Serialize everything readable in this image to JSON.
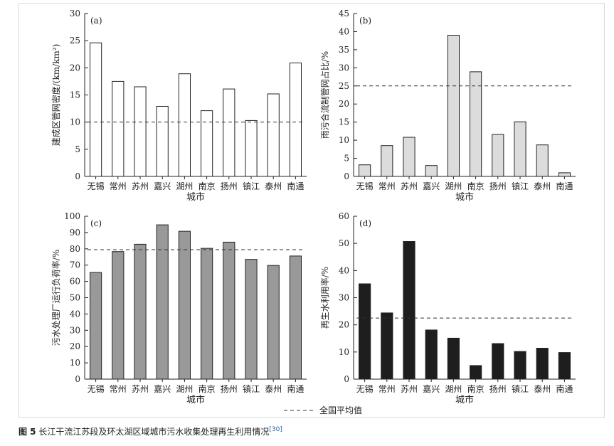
{
  "legend": {
    "label": "全国平均值"
  },
  "caption": {
    "figure": "图 5",
    "text": "长江干流江苏段及环太湖区域城市污水收集处理再生利用情况",
    "ref": "[30]"
  },
  "chart_data": [
    {
      "type": "bar",
      "panel": "(a)",
      "categories": [
        "无锡",
        "常州",
        "苏州",
        "嘉兴",
        "湖州",
        "南京",
        "扬州",
        "镇江",
        "泰州",
        "南通"
      ],
      "values": [
        24.6,
        17.5,
        16.5,
        12.9,
        18.9,
        12.1,
        16.1,
        10.3,
        15.2,
        20.9
      ],
      "national_average": 10,
      "xlabel": "城市",
      "ylabel": "建成区管网密度/(km/km²)",
      "ylim": [
        0,
        30
      ],
      "yticks": [
        0,
        5,
        10,
        15,
        20,
        25,
        30
      ],
      "bar_color": "#ffffff"
    },
    {
      "type": "bar",
      "panel": "(b)",
      "categories": [
        "无锡",
        "常州",
        "苏州",
        "嘉兴",
        "湖州",
        "南京",
        "扬州",
        "镇江",
        "泰州",
        "南通"
      ],
      "values": [
        3.2,
        8.5,
        10.8,
        3.0,
        39.0,
        28.9,
        11.6,
        15.1,
        8.7,
        1.0
      ],
      "national_average": 25,
      "xlabel": "城市",
      "ylabel": "雨污合流制管网占比/%",
      "ylim": [
        0,
        45
      ],
      "yticks": [
        0,
        5,
        10,
        15,
        20,
        25,
        30,
        35,
        40,
        45
      ],
      "bar_color": "#dcdcdc"
    },
    {
      "type": "bar",
      "panel": "(c)",
      "categories": [
        "无锡",
        "常州",
        "苏州",
        "嘉兴",
        "湖州",
        "南京",
        "扬州",
        "镇江",
        "泰州",
        "南通"
      ],
      "values": [
        65.5,
        78.3,
        82.8,
        94.7,
        90.8,
        80.3,
        84.1,
        73.5,
        69.8,
        75.6
      ],
      "national_average": 79.5,
      "xlabel": "城市",
      "ylabel": "污水处理厂运行负荷率/%",
      "ylim": [
        0,
        100
      ],
      "yticks": [
        0,
        10,
        20,
        30,
        40,
        50,
        60,
        70,
        80,
        90,
        100
      ],
      "bar_color": "#999999"
    },
    {
      "type": "bar",
      "panel": "(d)",
      "categories": [
        "无锡",
        "常州",
        "苏州",
        "嘉兴",
        "湖州",
        "南京",
        "扬州",
        "镇江",
        "泰州",
        "南通"
      ],
      "values": [
        35.1,
        24.4,
        50.7,
        18.1,
        15.1,
        5.0,
        13.1,
        10.2,
        11.4,
        9.8
      ],
      "national_average": 22.5,
      "xlabel": "城市",
      "ylabel": "再生水利用率/%",
      "ylim": [
        0,
        60
      ],
      "yticks": [
        0,
        10,
        20,
        30,
        40,
        50,
        60
      ],
      "bar_color": "#1e1e1e"
    }
  ]
}
